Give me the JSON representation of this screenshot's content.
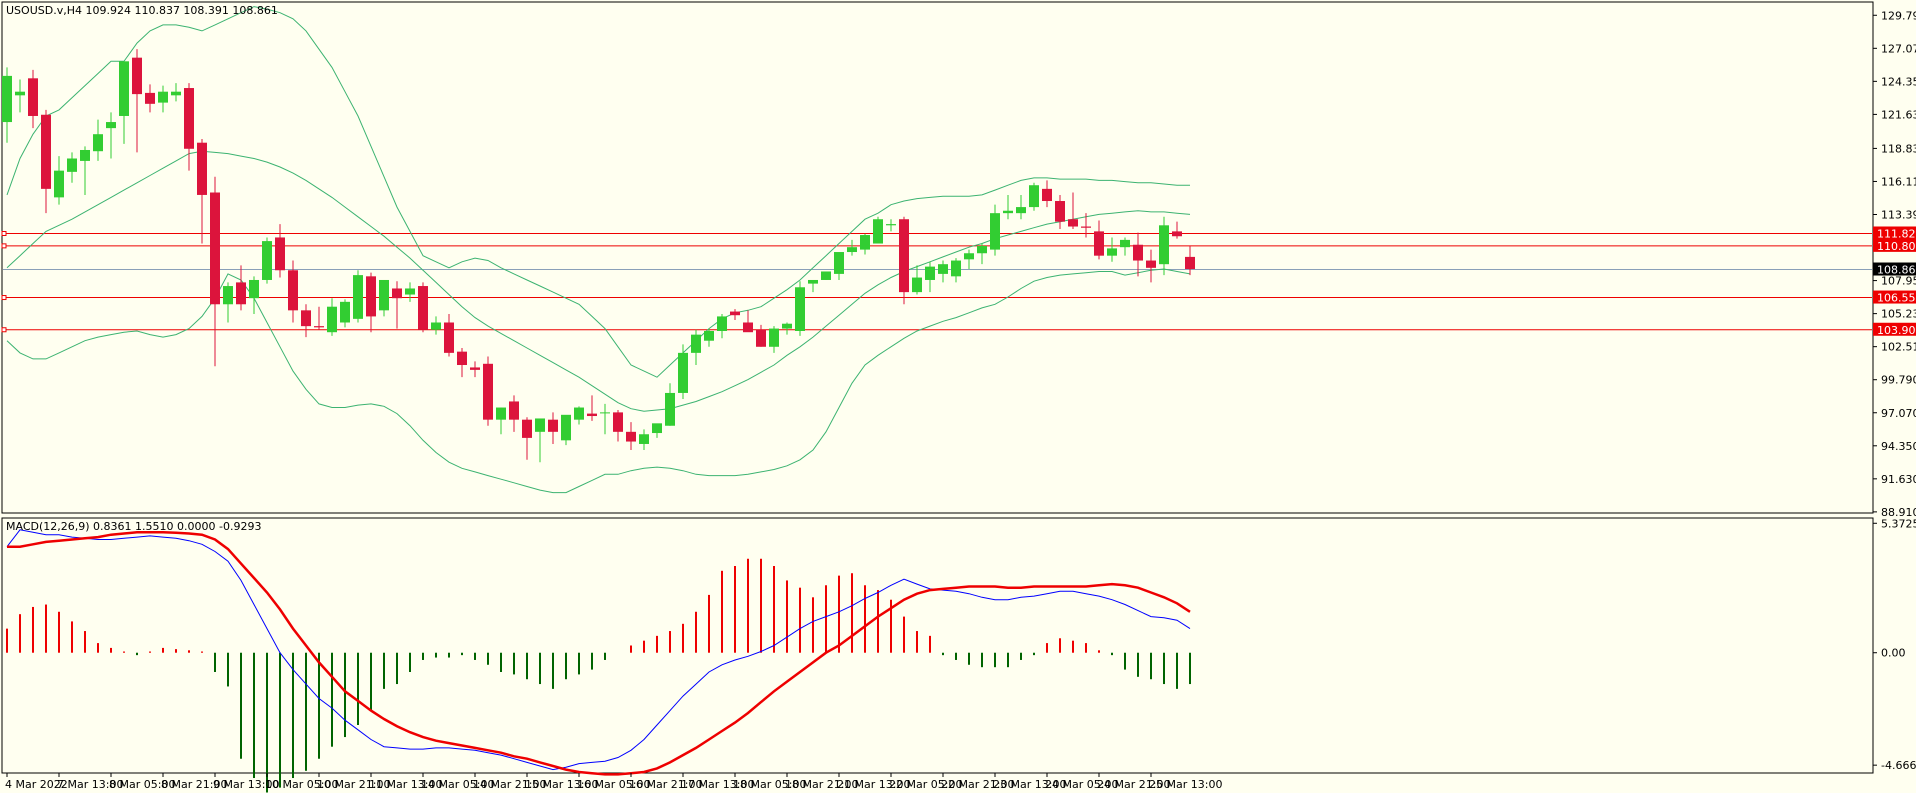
{
  "chart_data": [
    {
      "type": "candlestick",
      "header": "USOUSD.v,H4  109.924 110.837 108.391 108.861",
      "y_ticks": [
        "129.790",
        "127.070",
        "124.350",
        "121.630",
        "118.830",
        "116.110",
        "113.390",
        "110.670",
        "107.950",
        "105.230",
        "102.510",
        "99.790",
        "97.070",
        "94.350",
        "91.630",
        "88.910"
      ],
      "ylim": [
        88.9,
        130.8
      ],
      "x_ticks": [
        "4 Mar 2022",
        "7 Mar 13:00",
        "8 Mar 05:00",
        "8 Mar 21:00",
        "9 Mar 13:00",
        "10 Mar 05:00",
        "10 Mar 21:00",
        "11 Mar 13:00",
        "14 Mar 05:00",
        "14 Mar 21:00",
        "15 Mar 13:00",
        "16 Mar 05:00",
        "16 Mar 21:00",
        "17 Mar 13:00",
        "18 Mar 05:00",
        "18 Mar 21:00",
        "21 Mar 13:00",
        "22 Mar 05:00",
        "22 Mar 21:00",
        "23 Mar 13:00",
        "24 Mar 05:00",
        "24 Mar 21:00",
        "25 Mar 13:00"
      ],
      "ohlc": [
        [
          121.0,
          125.5,
          119.3,
          124.8
        ],
        [
          123.2,
          124.5,
          121.8,
          123.5
        ],
        [
          124.6,
          125.3,
          120.5,
          121.5
        ],
        [
          121.6,
          122.0,
          113.5,
          115.5
        ],
        [
          114.8,
          118.2,
          114.2,
          117.0
        ],
        [
          116.9,
          118.5,
          116.0,
          118.0
        ],
        [
          117.8,
          119.0,
          115.0,
          118.7
        ],
        [
          118.6,
          121.2,
          117.8,
          120.0
        ],
        [
          120.5,
          121.8,
          118.0,
          121.0
        ],
        [
          121.5,
          126.0,
          119.2,
          126.0
        ],
        [
          126.3,
          127.0,
          118.5,
          123.3
        ],
        [
          123.4,
          124.1,
          121.8,
          122.5
        ],
        [
          122.6,
          124.0,
          121.8,
          123.5
        ],
        [
          123.2,
          124.2,
          122.7,
          123.5
        ],
        [
          123.8,
          124.2,
          117.0,
          118.8
        ],
        [
          119.3,
          119.6,
          111.0,
          115.0
        ],
        [
          115.2,
          116.5,
          100.9,
          106.0
        ],
        [
          106.0,
          107.8,
          104.5,
          107.5
        ],
        [
          107.8,
          109.2,
          105.5,
          106.0
        ],
        [
          106.5,
          108.3,
          105.2,
          108.0
        ],
        [
          108.0,
          111.5,
          107.7,
          111.2
        ],
        [
          111.5,
          112.6,
          108.2,
          108.8
        ],
        [
          108.8,
          109.6,
          104.5,
          105.5
        ],
        [
          105.5,
          106.0,
          103.3,
          104.2
        ],
        [
          104.2,
          105.8,
          103.9,
          104.1
        ],
        [
          103.7,
          106.5,
          103.4,
          105.8
        ],
        [
          104.5,
          106.4,
          104.1,
          106.2
        ],
        [
          104.8,
          108.8,
          104.5,
          108.4
        ],
        [
          108.3,
          108.6,
          103.7,
          105.0
        ],
        [
          105.5,
          108.0,
          105.0,
          108.0
        ],
        [
          107.3,
          107.9,
          104.0,
          106.5
        ],
        [
          106.8,
          107.8,
          106.2,
          107.3
        ],
        [
          107.5,
          107.8,
          103.7,
          103.9
        ],
        [
          103.9,
          105.0,
          103.5,
          104.5
        ],
        [
          104.5,
          105.2,
          101.7,
          102.0
        ],
        [
          102.1,
          102.4,
          100.0,
          101.0
        ],
        [
          100.8,
          101.3,
          100.0,
          100.6
        ],
        [
          101.1,
          101.7,
          96.0,
          96.5
        ],
        [
          96.5,
          97.5,
          95.3,
          97.5
        ],
        [
          98.0,
          98.5,
          95.5,
          96.5
        ],
        [
          96.5,
          96.7,
          93.2,
          95.0
        ],
        [
          95.5,
          96.5,
          93.0,
          96.6
        ],
        [
          96.5,
          97.1,
          94.5,
          95.5
        ],
        [
          94.8,
          96.8,
          94.4,
          96.9
        ],
        [
          96.5,
          97.6,
          96.1,
          97.5
        ],
        [
          97.0,
          98.5,
          96.4,
          96.8
        ],
        [
          97.1,
          97.8,
          95.3,
          97.1
        ],
        [
          97.1,
          97.3,
          94.7,
          95.5
        ],
        [
          95.5,
          96.3,
          94.0,
          94.7
        ],
        [
          94.5,
          95.7,
          94.0,
          95.3
        ],
        [
          95.4,
          96.1,
          95.0,
          96.2
        ],
        [
          96.0,
          99.5,
          96.0,
          98.7
        ],
        [
          98.7,
          102.7,
          98.2,
          102.0
        ],
        [
          102.0,
          103.9,
          101.0,
          103.5
        ],
        [
          103.0,
          104.0,
          102.5,
          103.8
        ],
        [
          103.8,
          105.2,
          103.2,
          105.0
        ],
        [
          105.4,
          105.6,
          104.7,
          105.1
        ],
        [
          104.5,
          105.5,
          104.0,
          103.7
        ],
        [
          103.9,
          104.3,
          102.5,
          102.5
        ],
        [
          102.5,
          104.2,
          102.0,
          104.0
        ],
        [
          104.0,
          104.5,
          103.5,
          104.4
        ],
        [
          103.8,
          107.9,
          103.4,
          107.4
        ],
        [
          107.7,
          108.0,
          107.0,
          108.0
        ],
        [
          108.0,
          108.6,
          108.0,
          108.7
        ],
        [
          108.5,
          110.2,
          108.0,
          110.3
        ],
        [
          110.3,
          111.3,
          110.0,
          110.7
        ],
        [
          110.5,
          111.8,
          110.1,
          111.7
        ],
        [
          111.0,
          113.2,
          111.0,
          113.0
        ],
        [
          112.5,
          113.0,
          112.0,
          112.6
        ],
        [
          113.0,
          113.2,
          106.0,
          107.0
        ],
        [
          107.0,
          109.2,
          106.8,
          108.2
        ],
        [
          108.0,
          109.5,
          107.0,
          109.1
        ],
        [
          108.5,
          109.6,
          107.8,
          109.3
        ],
        [
          108.3,
          109.8,
          107.8,
          109.6
        ],
        [
          109.7,
          110.5,
          108.9,
          110.2
        ],
        [
          110.2,
          111.0,
          109.3,
          110.8
        ],
        [
          110.5,
          114.2,
          110.0,
          113.5
        ],
        [
          113.5,
          115.0,
          113.0,
          113.7
        ],
        [
          113.5,
          115.0,
          113.0,
          114.0
        ],
        [
          114.0,
          116.0,
          113.7,
          115.8
        ],
        [
          115.5,
          116.2,
          114.0,
          114.5
        ],
        [
          114.5,
          115.0,
          112.2,
          112.8
        ],
        [
          113.0,
          115.2,
          112.2,
          112.4
        ],
        [
          112.4,
          113.5,
          111.5,
          112.3
        ],
        [
          112.0,
          112.9,
          109.7,
          110.0
        ],
        [
          110.0,
          111.5,
          109.5,
          110.6
        ],
        [
          110.7,
          111.5,
          110.0,
          111.3
        ],
        [
          110.9,
          111.9,
          108.3,
          109.6
        ],
        [
          109.6,
          110.5,
          107.8,
          109.0
        ],
        [
          109.3,
          113.2,
          108.4,
          112.5
        ],
        [
          112.0,
          112.8,
          111.4,
          111.6
        ],
        [
          109.9,
          110.8,
          108.4,
          108.9
        ]
      ],
      "bollinger": {
        "upper": [
          115,
          118,
          120,
          121.5,
          122,
          123,
          124,
          125,
          126,
          126,
          127.5,
          128.5,
          129,
          129,
          128.8,
          128.5,
          129,
          129.5,
          130,
          130.5,
          130.3,
          130,
          129.5,
          128.5,
          127,
          125.5,
          123.5,
          121.5,
          119,
          116.5,
          114,
          112,
          110,
          109.5,
          109,
          109.5,
          109.8,
          109.6,
          109,
          108.5,
          108,
          107.5,
          107,
          106.5,
          106,
          105,
          104,
          102.5,
          101,
          100.5,
          100,
          101,
          102,
          103,
          104,
          104.8,
          105.3,
          105.5,
          105.8,
          106.5,
          107.2,
          108,
          109,
          110,
          111,
          112,
          113,
          113.5,
          114.2,
          114.5,
          114.7,
          114.8,
          114.9,
          114.9,
          114.9,
          115.0,
          115.4,
          115.8,
          116.2,
          116.4,
          116.4,
          116.3,
          116.3,
          116.3,
          116.2,
          116.2,
          116.1,
          116.0,
          116.0,
          115.9,
          115.8,
          115.8
        ],
        "middle": [
          109,
          110,
          111,
          112,
          112.5,
          113,
          113.6,
          114.2,
          114.8,
          115.4,
          116,
          116.6,
          117.2,
          117.8,
          118.4,
          118.6,
          118.5,
          118.4,
          118.2,
          118.0,
          117.7,
          117.3,
          116.8,
          116.2,
          115.5,
          114.8,
          114.0,
          113.2,
          112.4,
          111.6,
          110.7,
          109.8,
          108.8,
          107.8,
          106.8,
          105.8,
          104.9,
          104.2,
          103.6,
          103.0,
          102.4,
          101.8,
          101.2,
          100.6,
          100.0,
          99.3,
          98.6,
          97.9,
          97.4,
          97.2,
          97.3,
          97.4,
          97.7,
          98.0,
          98.4,
          98.8,
          99.3,
          99.8,
          100.4,
          101.0,
          101.8,
          102.5,
          103.3,
          104.2,
          105.1,
          106.0,
          106.9,
          107.6,
          108.2,
          108.7,
          109.1,
          109.5,
          109.9,
          110.3,
          110.7,
          111.0,
          111.4,
          111.7,
          112.0,
          112.3,
          112.6,
          112.8,
          113.0,
          113.2,
          113.4,
          113.5,
          113.6,
          113.7,
          113.6,
          113.6,
          113.5,
          113.4
        ],
        "lower": [
          103,
          102,
          101.5,
          101.5,
          102,
          102.5,
          103,
          103.3,
          103.5,
          103.7,
          103.8,
          103.5,
          103.3,
          103.5,
          104,
          105,
          106.5,
          108.5,
          108,
          106.5,
          104.5,
          102.5,
          100.5,
          99,
          97.8,
          97.5,
          97.5,
          97.7,
          97.8,
          97.6,
          97.0,
          96.0,
          94.8,
          93.8,
          93.0,
          92.5,
          92.2,
          91.9,
          91.6,
          91.3,
          91.0,
          90.7,
          90.5,
          90.5,
          91.0,
          91.5,
          92.0,
          92.0,
          92.3,
          92.5,
          92.6,
          92.5,
          92.3,
          92.0,
          91.9,
          91.9,
          91.9,
          92.0,
          92.2,
          92.4,
          92.7,
          93.2,
          94.0,
          95.5,
          97.5,
          99.5,
          101.0,
          101.8,
          102.5,
          103.2,
          103.8,
          104.2,
          104.6,
          104.9,
          105.3,
          105.7,
          106.0,
          106.6,
          107.3,
          107.9,
          108.2,
          108.4,
          108.5,
          108.6,
          108.7,
          108.7,
          108.4,
          108.6,
          108.8,
          108.9,
          108.7,
          108.5
        ]
      },
      "horizontal_levels": [
        {
          "value": 111.826,
          "label": "111.826",
          "color": "#ee0000"
        },
        {
          "value": 110.808,
          "label": "110.808",
          "color": "#ee0000"
        },
        {
          "value": 106.554,
          "label": "106.554",
          "color": "#ee0000"
        },
        {
          "value": 103.902,
          "label": "103.902",
          "color": "#ee0000"
        }
      ],
      "current_price": {
        "value": 108.861,
        "label": "108.861"
      },
      "colors": {
        "bull": "#32cd32",
        "bear": "#dc143c",
        "bands": "#3cb371",
        "level": "#ee0000",
        "bid": "#8aa0b8"
      }
    },
    {
      "type": "macd",
      "header": "MACD(12,26,9) 0.8361 1.5510 0.0000 -0.9293",
      "y_ticks": [
        "5.3725",
        "0.00",
        "-4.666"
      ],
      "ylim": [
        -4.95,
        5.55
      ],
      "histogram": [
        1.0,
        1.6,
        1.9,
        2.0,
        1.7,
        1.3,
        0.9,
        0.4,
        0.2,
        0.05,
        -0.1,
        0.05,
        0.2,
        0.15,
        0.1,
        0.05,
        -0.8,
        -1.4,
        -4.4,
        -5.2,
        -5.8,
        -5.6,
        -5.2,
        -4.9,
        -4.4,
        -3.9,
        -3.5,
        -3.0,
        -2.4,
        -1.5,
        -1.3,
        -0.8,
        -0.3,
        -0.2,
        -0.2,
        -0.1,
        -0.3,
        -0.5,
        -0.8,
        -0.9,
        -1.1,
        -1.3,
        -1.5,
        -1.1,
        -0.9,
        -0.7,
        -0.3,
        0.0,
        0.3,
        0.5,
        0.7,
        0.9,
        1.2,
        1.7,
        2.4,
        3.4,
        3.6,
        3.9,
        3.9,
        3.6,
        3.0,
        2.7,
        2.3,
        2.8,
        3.2,
        3.3,
        2.8,
        2.6,
        2.2,
        1.5,
        0.9,
        0.7,
        -0.1,
        -0.3,
        -0.5,
        -0.6,
        -0.6,
        -0.6,
        -0.3,
        -0.1,
        0.4,
        0.6,
        0.5,
        0.4,
        0.1,
        -0.1,
        -0.7,
        -1.0,
        -1.1,
        -1.3,
        -1.5,
        -1.3
      ],
      "macd": [
        4.4,
        5.1,
        5.0,
        4.9,
        4.9,
        4.8,
        4.75,
        4.7,
        4.7,
        4.75,
        4.8,
        4.85,
        4.8,
        4.75,
        4.65,
        4.5,
        4.2,
        3.8,
        3.0,
        2.0,
        1.0,
        0.0,
        -0.7,
        -1.3,
        -1.9,
        -2.3,
        -2.8,
        -3.2,
        -3.6,
        -3.9,
        -3.95,
        -4.0,
        -4.0,
        -3.95,
        -3.95,
        -4.0,
        -4.05,
        -4.15,
        -4.25,
        -4.4,
        -4.55,
        -4.7,
        -4.85,
        -4.75,
        -4.6,
        -4.55,
        -4.5,
        -4.35,
        -4.05,
        -3.6,
        -3.0,
        -2.4,
        -1.8,
        -1.3,
        -0.8,
        -0.5,
        -0.3,
        -0.15,
        0.05,
        0.3,
        0.65,
        1.0,
        1.3,
        1.5,
        1.7,
        1.95,
        2.25,
        2.5,
        2.8,
        3.05,
        2.85,
        2.65,
        2.6,
        2.55,
        2.45,
        2.3,
        2.2,
        2.2,
        2.3,
        2.35,
        2.45,
        2.55,
        2.55,
        2.45,
        2.35,
        2.2,
        2.0,
        1.75,
        1.5,
        1.45,
        1.35,
        1.0
      ],
      "signal": [
        4.4,
        4.4,
        4.5,
        4.6,
        4.65,
        4.7,
        4.75,
        4.8,
        4.9,
        4.95,
        5.0,
        5.0,
        5.0,
        4.98,
        4.95,
        4.9,
        4.7,
        4.3,
        3.7,
        3.1,
        2.5,
        1.8,
        1.0,
        0.3,
        -0.4,
        -1.0,
        -1.6,
        -2.0,
        -2.4,
        -2.75,
        -3.05,
        -3.3,
        -3.5,
        -3.65,
        -3.75,
        -3.85,
        -3.95,
        -4.05,
        -4.15,
        -4.3,
        -4.4,
        -4.55,
        -4.7,
        -4.85,
        -4.95,
        -5.0,
        -5.05,
        -5.05,
        -5.0,
        -4.95,
        -4.8,
        -4.55,
        -4.25,
        -3.95,
        -3.6,
        -3.25,
        -2.9,
        -2.5,
        -2.05,
        -1.6,
        -1.2,
        -0.8,
        -0.4,
        0.0,
        0.3,
        0.7,
        1.1,
        1.5,
        1.85,
        2.2,
        2.45,
        2.6,
        2.65,
        2.7,
        2.75,
        2.75,
        2.75,
        2.7,
        2.7,
        2.75,
        2.75,
        2.75,
        2.75,
        2.75,
        2.8,
        2.85,
        2.8,
        2.7,
        2.5,
        2.3,
        2.05,
        1.7
      ],
      "colors": {
        "hist_pos": "#ee0000",
        "hist_neg": "#006400",
        "macd": "#0000ff",
        "signal": "#ee0000"
      }
    }
  ]
}
